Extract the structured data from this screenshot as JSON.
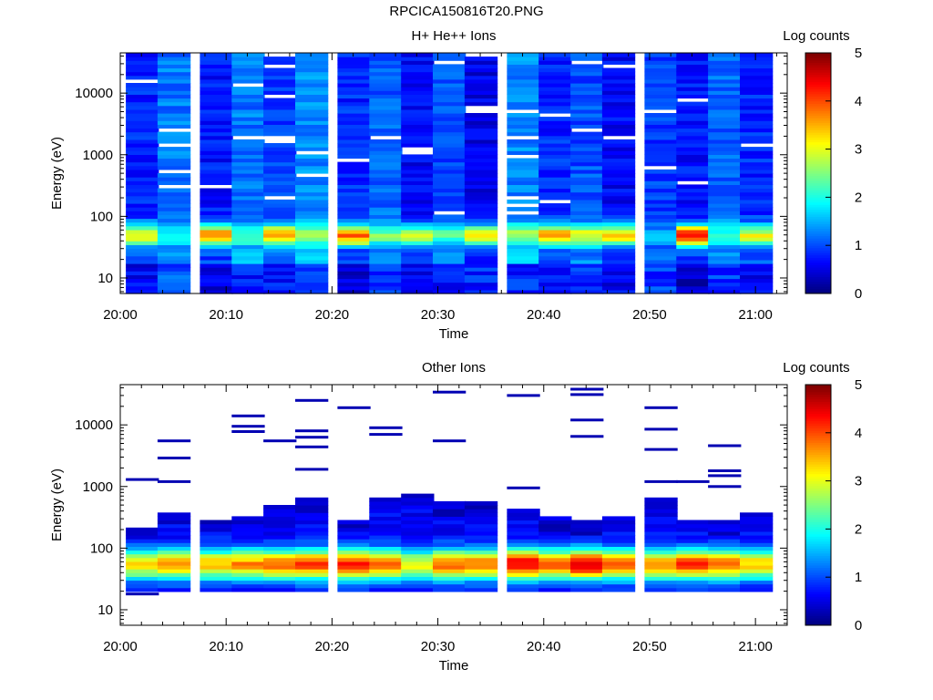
{
  "page_title": "RPCICA150816T20.PNG",
  "chart_data": [
    {
      "type": "heatmap",
      "title": "H+ He++ Ions",
      "xlabel": "Time",
      "ylabel": "Energy (eV)",
      "x_ticks": [
        "20:00",
        "20:10",
        "20:20",
        "20:30",
        "20:40",
        "20:50",
        "21:00"
      ],
      "x_range": [
        "20:00",
        "21:03"
      ],
      "y_scale": "log",
      "y_range": [
        5.6,
        45000
      ],
      "y_ticks": [
        10,
        100,
        1000,
        10000
      ],
      "colorbar": {
        "label": "Log counts",
        "range": [
          0,
          5
        ],
        "ticks": [
          0,
          1,
          2,
          3,
          4,
          5
        ],
        "colormap": "jet"
      },
      "columns": [
        {
          "time": "20:02",
          "peak": 3.2,
          "base": 0.8,
          "lo": 0.3
        },
        {
          "time": "20:05",
          "peak": 2.0,
          "base": 1.2,
          "lo": 0.7
        },
        {
          "time": "20:09",
          "peak": 3.7,
          "base": 0.7,
          "lo": 0.2
        },
        {
          "time": "20:12",
          "peak": 2.3,
          "base": 1.2,
          "lo": 0.5
        },
        {
          "time": "20:15",
          "peak": 3.5,
          "base": 0.9,
          "lo": 0.4
        },
        {
          "time": "20:18",
          "peak": 2.6,
          "base": 1.3,
          "lo": 0.6
        },
        {
          "time": "20:22",
          "peak": 3.9,
          "base": 0.8,
          "lo": 0.1
        },
        {
          "time": "20:25",
          "peak": 2.5,
          "base": 1.1,
          "lo": 0.6
        },
        {
          "time": "20:28",
          "peak": 2.8,
          "base": 0.6,
          "lo": 0.3
        },
        {
          "time": "20:31",
          "peak": 2.3,
          "base": 1.0,
          "lo": 0.4
        },
        {
          "time": "20:34",
          "peak": 3.2,
          "base": 0.5,
          "lo": 0.5
        },
        {
          "time": "20:38",
          "peak": 2.7,
          "base": 1.3,
          "lo": 0.5
        },
        {
          "time": "20:41",
          "peak": 3.6,
          "base": 0.8,
          "lo": 0.4
        },
        {
          "time": "20:44",
          "peak": 3.0,
          "base": 1.0,
          "lo": 0.5
        },
        {
          "time": "20:47",
          "peak": 3.4,
          "base": 0.6,
          "lo": 0.3
        },
        {
          "time": "20:51",
          "peak": 1.5,
          "base": 0.9,
          "lo": 0.6
        },
        {
          "time": "20:54",
          "peak": 4.3,
          "base": 0.7,
          "lo": 0.1
        },
        {
          "time": "20:57",
          "peak": 2.2,
          "base": 1.1,
          "lo": 0.6
        },
        {
          "time": "21:00",
          "peak": 3.0,
          "base": 0.8,
          "lo": 0.3
        }
      ]
    },
    {
      "type": "heatmap",
      "title": "Other Ions",
      "xlabel": "Time",
      "ylabel": "Energy (eV)",
      "x_ticks": [
        "20:00",
        "20:10",
        "20:20",
        "20:30",
        "20:40",
        "20:50",
        "21:00"
      ],
      "x_range": [
        "20:00",
        "21:03"
      ],
      "y_scale": "log",
      "y_range": [
        5.6,
        45000
      ],
      "y_ticks": [
        10,
        100,
        1000,
        10000
      ],
      "colorbar": {
        "label": "Log counts",
        "range": [
          0,
          5
        ],
        "ticks": [
          0,
          1,
          2,
          3,
          4,
          5
        ],
        "colormap": "jet"
      },
      "columns": [
        {
          "time": "20:02",
          "peak": 3.3,
          "top_energy": 230,
          "sparse_energies": [
            1300,
            18
          ]
        },
        {
          "time": "20:05",
          "peak": 3.6,
          "top_energy": 400,
          "sparse_energies": [
            5500,
            2900,
            1200
          ]
        },
        {
          "time": "20:09",
          "peak": 3.5,
          "top_energy": 300,
          "sparse_energies": []
        },
        {
          "time": "20:12",
          "peak": 3.7,
          "top_energy": 350,
          "sparse_energies": [
            14000,
            9500,
            7800
          ]
        },
        {
          "time": "20:15",
          "peak": 3.8,
          "top_energy": 480,
          "sparse_energies": [
            5500
          ]
        },
        {
          "time": "20:18",
          "peak": 4.1,
          "top_energy": 650,
          "sparse_energies": [
            25000,
            8000,
            6300,
            4400,
            1900
          ]
        },
        {
          "time": "20:22",
          "peak": 4.3,
          "top_energy": 300,
          "sparse_energies": [
            19000
          ]
        },
        {
          "time": "20:25",
          "peak": 4.0,
          "top_energy": 700,
          "sparse_energies": [
            9000,
            7000
          ]
        },
        {
          "time": "20:28",
          "peak": 3.0,
          "top_energy": 800,
          "sparse_energies": []
        },
        {
          "time": "20:31",
          "peak": 3.9,
          "top_energy": 560,
          "sparse_energies": [
            34000,
            5500
          ]
        },
        {
          "time": "20:34",
          "peak": 3.8,
          "top_energy": 580,
          "sparse_energies": []
        },
        {
          "time": "20:38",
          "peak": 4.5,
          "top_energy": 450,
          "sparse_energies": [
            30000,
            950
          ]
        },
        {
          "time": "20:41",
          "peak": 4.0,
          "top_energy": 320,
          "sparse_energies": []
        },
        {
          "time": "20:44",
          "peak": 4.6,
          "top_energy": 270,
          "sparse_energies": [
            38000,
            31000,
            12000,
            6500
          ]
        },
        {
          "time": "20:47",
          "peak": 3.9,
          "top_energy": 350,
          "sparse_energies": []
        },
        {
          "time": "20:51",
          "peak": 3.6,
          "top_energy": 650,
          "sparse_energies": [
            19000,
            8500,
            4000,
            1200
          ]
        },
        {
          "time": "20:54",
          "peak": 4.2,
          "top_energy": 300,
          "sparse_energies": [
            1200
          ]
        },
        {
          "time": "20:57",
          "peak": 3.9,
          "top_energy": 280,
          "sparse_energies": [
            4600,
            1800,
            1500,
            1000
          ]
        },
        {
          "time": "21:00",
          "peak": 3.4,
          "top_energy": 400,
          "sparse_energies": []
        }
      ]
    }
  ]
}
